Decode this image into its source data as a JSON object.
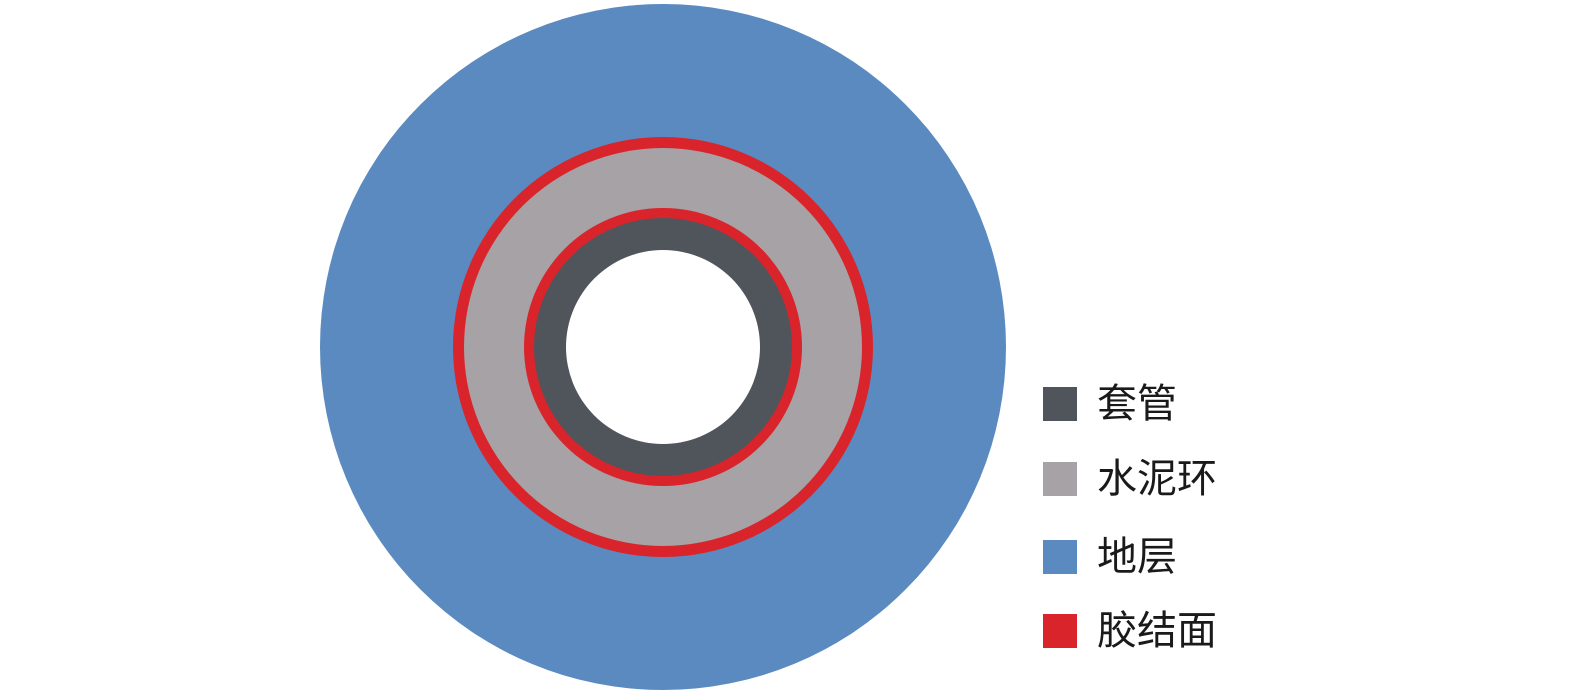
{
  "diagram": {
    "layers": [
      {
        "key": "formation",
        "label": "地层",
        "color": "#5a8ac0"
      },
      {
        "key": "interface",
        "label": "胶结面",
        "color": "#d9242b"
      },
      {
        "key": "cement",
        "label": "水泥环",
        "color": "#a6a2a5"
      },
      {
        "key": "casing",
        "label": "套管",
        "color": "#50555b"
      }
    ]
  },
  "legend": {
    "items": [
      {
        "label": "套管",
        "color": "#50555b"
      },
      {
        "label": "水泥环",
        "color": "#a6a2a5"
      },
      {
        "label": "地层",
        "color": "#5a8ac0"
      },
      {
        "label": "胶结面",
        "color": "#d9242b"
      }
    ]
  }
}
